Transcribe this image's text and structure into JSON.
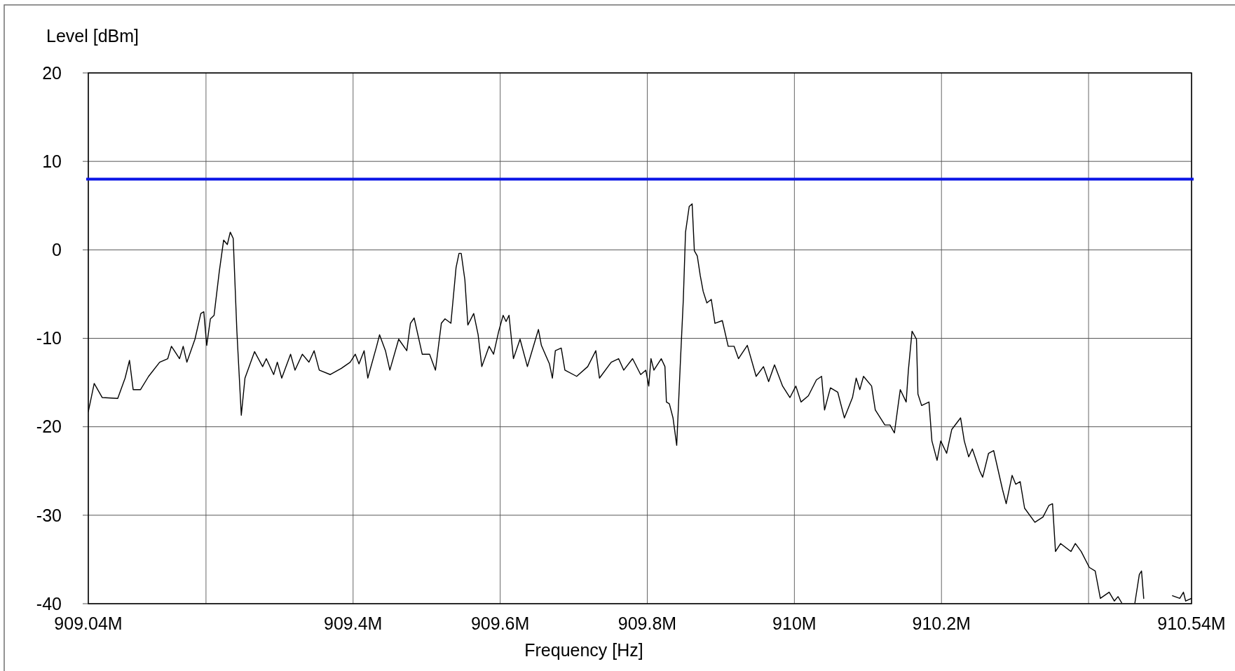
{
  "chart_data": {
    "type": "line",
    "xlabel": "Frequency [Hz]",
    "ylabel": "Level [dBm]",
    "xlim": [
      909.04,
      910.54
    ],
    "ylim": [
      -40,
      20
    ],
    "xticks": [
      {
        "value": 909.04,
        "label": "909.04M"
      },
      {
        "value": 909.2,
        "label": null
      },
      {
        "value": 909.4,
        "label": "909.4M"
      },
      {
        "value": 909.6,
        "label": "909.6M"
      },
      {
        "value": 909.8,
        "label": "909.8M"
      },
      {
        "value": 910,
        "label": "910M"
      },
      {
        "value": 910.2,
        "label": "910.2M"
      },
      {
        "value": 910.4,
        "label": null
      },
      {
        "value": 910.54,
        "label": "910.54M"
      }
    ],
    "yticks": [
      -40,
      -30,
      -20,
      -10,
      0,
      10,
      20
    ],
    "grid": true,
    "ref_lines": [
      {
        "axis": "y",
        "value": 8,
        "color": "#0a14e6"
      }
    ],
    "series": [
      {
        "color": "#000000",
        "x": [
          909.04,
          909.048,
          909.059,
          909.08,
          909.09,
          909.096,
          909.101,
          909.111,
          909.122,
          909.137,
          909.148,
          909.153,
          909.164,
          909.169,
          909.174,
          909.185,
          909.193,
          909.197,
          909.201,
          909.206,
          909.211,
          909.218,
          909.224,
          909.229,
          909.233,
          909.237,
          909.242,
          909.248,
          909.253,
          909.26,
          909.266,
          909.277,
          909.282,
          909.292,
          909.297,
          909.303,
          909.315,
          909.321,
          909.331,
          909.34,
          909.347,
          909.354,
          909.369,
          909.384,
          909.396,
          909.403,
          909.408,
          909.415,
          909.42,
          909.432,
          909.436,
          909.444,
          909.45,
          909.462,
          909.473,
          909.478,
          909.483,
          909.494,
          909.504,
          909.512,
          909.52,
          909.525,
          909.533,
          909.536,
          909.54,
          909.544,
          909.547,
          909.552,
          909.556,
          909.564,
          909.57,
          909.575,
          909.585,
          909.591,
          909.598,
          909.604,
          909.608,
          909.612,
          909.618,
          909.627,
          909.637,
          909.652,
          909.656,
          909.667,
          909.671,
          909.675,
          909.683,
          909.688,
          909.704,
          909.719,
          909.73,
          909.735,
          909.751,
          909.761,
          909.768,
          909.78,
          909.791,
          909.798,
          909.802,
          909.805,
          909.809,
          909.819,
          909.824,
          909.826,
          909.83,
          909.835,
          909.84,
          909.845,
          909.849,
          909.852,
          909.857,
          909.861,
          909.864,
          909.868,
          909.872,
          909.876,
          909.881,
          909.887,
          909.892,
          909.902,
          909.91,
          909.918,
          909.924,
          909.936,
          909.948,
          909.958,
          909.965,
          909.973,
          909.984,
          909.994,
          910.002,
          910.009,
          910.019,
          910.03,
          910.037,
          910.041,
          910.049,
          910.059,
          910.068,
          910.079,
          910.084,
          910.089,
          910.094,
          910.105,
          910.11,
          910.123,
          910.13,
          910.136,
          910.141,
          910.144,
          910.152,
          910.155,
          910.16,
          910.166,
          910.168,
          910.173,
          910.183,
          910.187,
          910.194,
          910.199,
          910.207,
          910.214,
          910.226,
          910.231,
          910.237,
          910.242,
          910.252,
          910.256,
          910.264,
          910.271,
          910.283,
          910.288,
          910.296,
          910.301,
          910.307,
          910.313,
          910.327,
          910.338,
          910.346,
          910.351,
          910.355,
          910.362,
          910.376,
          910.382,
          910.39,
          910.401,
          910.409,
          910.416,
          910.428,
          910.435,
          910.44,
          910.445,
          910.455,
          910.463,
          910.469,
          910.472,
          910.475,
          910.49,
          910.514,
          910.524,
          910.529,
          910.532,
          910.54
        ],
        "values": [
          -18.3,
          -15.1,
          -16.7,
          -16.8,
          -14.5,
          -12.5,
          -15.8,
          -15.8,
          -14.3,
          -12.7,
          -12.3,
          -10.9,
          -12.3,
          -10.9,
          -12.7,
          -10.1,
          -7.2,
          -7.0,
          -10.8,
          -7.8,
          -7.4,
          -2.5,
          1.1,
          0.6,
          2.0,
          1.3,
          -9.2,
          -18.7,
          -14.5,
          -12.9,
          -11.5,
          -13.2,
          -12.3,
          -14.1,
          -12.7,
          -14.5,
          -11.8,
          -13.6,
          -11.8,
          -12.7,
          -11.4,
          -13.6,
          -14.1,
          -13.4,
          -12.7,
          -11.8,
          -12.9,
          -11.4,
          -14.5,
          -10.9,
          -9.6,
          -11.4,
          -13.6,
          -10.1,
          -11.4,
          -8.3,
          -7.7,
          -11.8,
          -11.8,
          -13.6,
          -8.3,
          -7.8,
          -8.3,
          -5.6,
          -2.0,
          -0.4,
          -0.4,
          -3.4,
          -8.5,
          -7.2,
          -9.6,
          -13.2,
          -10.9,
          -11.8,
          -9.2,
          -7.4,
          -8.1,
          -7.4,
          -12.3,
          -10.1,
          -13.2,
          -9.0,
          -10.8,
          -12.9,
          -14.5,
          -11.4,
          -11.1,
          -13.6,
          -14.3,
          -13.2,
          -11.4,
          -14.5,
          -12.7,
          -12.3,
          -13.6,
          -12.3,
          -14.1,
          -13.6,
          -15.4,
          -12.3,
          -13.6,
          -12.3,
          -13.2,
          -17.2,
          -17.4,
          -19.0,
          -22.1,
          -12.7,
          -5.6,
          2.0,
          4.9,
          5.2,
          -0.1,
          -0.7,
          -2.9,
          -4.7,
          -6.0,
          -5.6,
          -8.3,
          -8.0,
          -10.9,
          -10.9,
          -12.3,
          -10.8,
          -14.3,
          -13.2,
          -14.9,
          -13.0,
          -15.4,
          -16.7,
          -15.4,
          -17.2,
          -16.5,
          -14.7,
          -14.3,
          -18.1,
          -15.6,
          -16.1,
          -19.0,
          -16.7,
          -14.5,
          -15.8,
          -14.3,
          -15.4,
          -18.1,
          -19.8,
          -19.8,
          -20.7,
          -17.6,
          -15.8,
          -17.2,
          -13.6,
          -9.2,
          -10.1,
          -16.3,
          -17.6,
          -17.2,
          -21.6,
          -23.8,
          -21.6,
          -23.0,
          -20.3,
          -19.0,
          -21.6,
          -23.4,
          -22.5,
          -25.0,
          -25.7,
          -23.0,
          -22.7,
          -27.1,
          -28.7,
          -25.5,
          -26.5,
          -26.2,
          -29.2,
          -30.8,
          -30.2,
          -28.9,
          -28.7,
          -34.1,
          -33.2,
          -34.1,
          -33.2,
          -34.1,
          -35.9,
          -36.3,
          -39.4,
          -38.7,
          -39.7,
          -39.2,
          -39.9,
          null,
          -39.9,
          -36.7,
          -36.3,
          -39.4,
          null,
          -39.1,
          -39.4,
          -38.7,
          -39.7,
          -39.4
        ]
      }
    ]
  }
}
